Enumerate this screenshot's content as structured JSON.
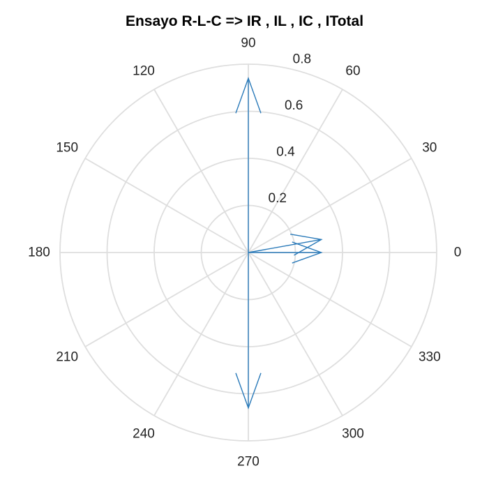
{
  "chart_data": {
    "type": "polar",
    "subtype": "compass",
    "title": "Ensayo R-L-C => IR , IL , IC , ITotal",
    "theta_tick_labels": [
      "0",
      "30",
      "60",
      "90",
      "120",
      "150",
      "180",
      "210",
      "240",
      "270",
      "300",
      "330"
    ],
    "theta_ticks_deg": [
      0,
      30,
      60,
      90,
      120,
      150,
      180,
      210,
      240,
      270,
      300,
      330
    ],
    "r_tick_labels": [
      "0.2",
      "0.4",
      "0.6",
      "0.8"
    ],
    "r_ticks": [
      0.2,
      0.4,
      0.6,
      0.8
    ],
    "rlim": [
      0,
      0.8
    ],
    "grid": true,
    "line_color": "#2a7ab9",
    "grid_color": "#dedede",
    "vectors": [
      {
        "angle_deg": 0,
        "magnitude": 0.31
      },
      {
        "angle_deg": 90,
        "magnitude": 0.74
      },
      {
        "angle_deg": 270,
        "magnitude": 0.66
      },
      {
        "angle_deg": 10.1,
        "magnitude": 0.315
      }
    ]
  }
}
